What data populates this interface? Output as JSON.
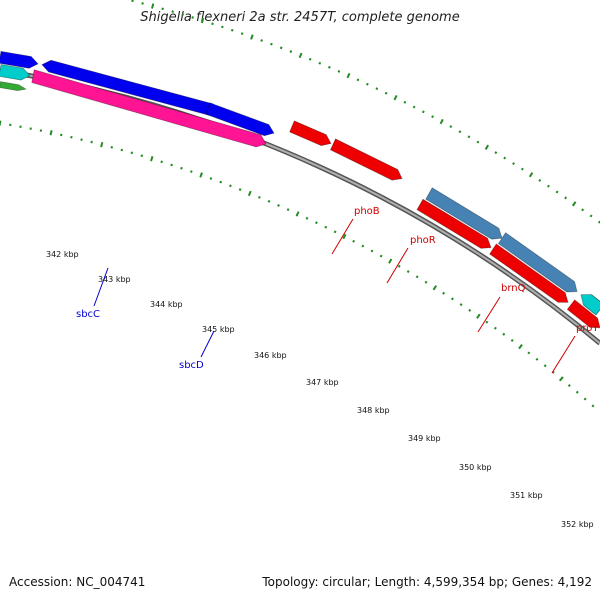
{
  "title": "Shigella flexneri 2a str. 2457T, complete genome",
  "footer": {
    "accession": "Accession: NC_004741",
    "stats": "Topology: circular; Length: 4,599,354 bp; Genes: 4,192"
  },
  "scale_labels": [
    "342 kbp",
    "343 kbp",
    "344 kbp",
    "345 kbp",
    "346 kbp",
    "347 kbp",
    "348 kbp",
    "349 kbp",
    "350 kbp",
    "351 kbp",
    "352 kbp"
  ],
  "genes": [
    {
      "name": "sbcC",
      "color": "#0000cc"
    },
    {
      "name": "sbcD",
      "color": "#0000cc"
    },
    {
      "name": "phoB",
      "color": "#cc0000"
    },
    {
      "name": "phoR",
      "color": "#cc0000"
    },
    {
      "name": "brnQ",
      "color": "#cc0000"
    },
    {
      "name": "proY",
      "color": "#cc0000"
    }
  ],
  "colors": {
    "backbone": "#888888",
    "tick": "#228b22",
    "blue": "#0000ee",
    "cyan": "#00cccc",
    "magenta": "#ff1493",
    "red": "#ee0000",
    "steelblue": "#4682b4"
  }
}
